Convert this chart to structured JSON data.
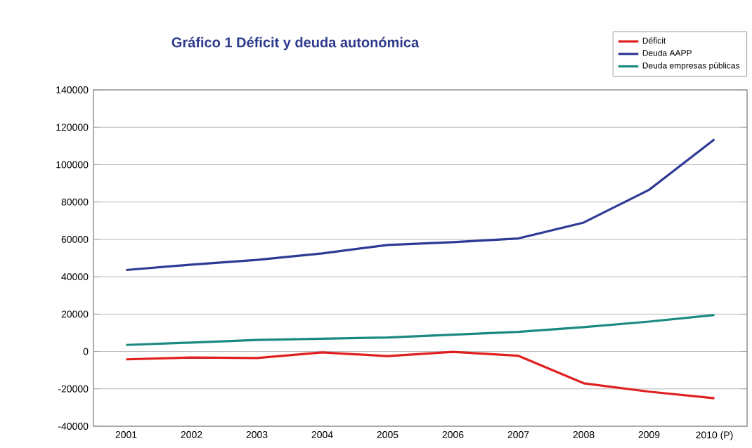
{
  "chart_data": {
    "type": "line",
    "title": "Gráfico 1 Déficit y deuda autonómica",
    "categories": [
      "2001",
      "2002",
      "2003",
      "2004",
      "2005",
      "2006",
      "2007",
      "2008",
      "2009",
      "2010 (P)"
    ],
    "series": [
      {
        "name": "Déficit",
        "color": "#e02020",
        "values": [
          -4200,
          -3200,
          -3500,
          -500,
          -2500,
          -200,
          -2300,
          -17000,
          -21500,
          -25000
        ]
      },
      {
        "name": "Deuda AAPP",
        "color": "#2e3a94",
        "values": [
          43600,
          46500,
          49000,
          52500,
          57000,
          58500,
          60500,
          69000,
          86500,
          113500
        ]
      },
      {
        "name": "Deuda empresas públicas",
        "color": "#1a8a80",
        "values": [
          3500,
          4800,
          6200,
          6800,
          7500,
          9000,
          10500,
          13000,
          16000,
          19500
        ]
      }
    ],
    "ylim": [
      -40000,
      140000
    ],
    "yticks": [
      -40000,
      -20000,
      0,
      20000,
      40000,
      60000,
      80000,
      100000,
      120000,
      140000
    ],
    "grid": "y",
    "legend": "top right",
    "marker": "none",
    "line_style": "solid"
  }
}
